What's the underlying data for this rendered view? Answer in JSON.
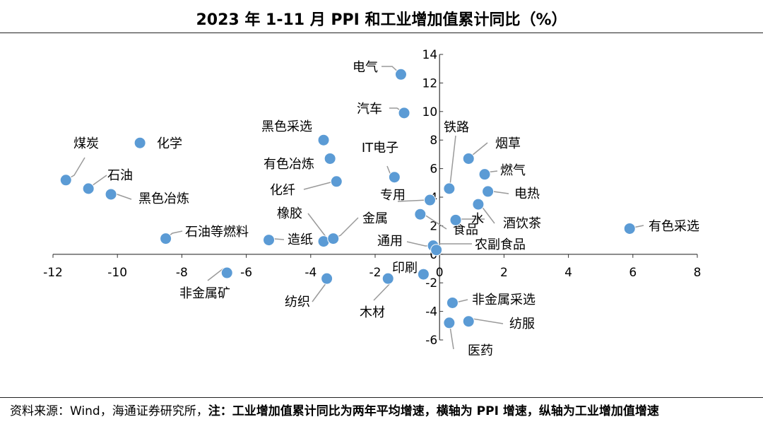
{
  "chart_data": {
    "type": "scatter",
    "title": "2023 年 1-11 月 PPI 和工业增加值累计同比（%）",
    "xlabel": "PPI 增速",
    "ylabel": "工业增加值增速",
    "xlim": [
      -12,
      8
    ],
    "ylim": [
      -6,
      14
    ],
    "x_ticks": [
      "-12",
      "-10",
      "-8",
      "-6",
      "-4",
      "-2",
      "0",
      "2",
      "4",
      "6",
      "8"
    ],
    "y_ticks": [
      "-6",
      "-4",
      "-2",
      "0",
      "2",
      "4",
      "6",
      "8",
      "10",
      "12",
      "14"
    ],
    "point_color": "#5b9bd5",
    "points": [
      {
        "label": "电气",
        "x": -1.2,
        "y": 12.6
      },
      {
        "label": "汽车",
        "x": -1.1,
        "y": 9.9
      },
      {
        "label": "黑色采选",
        "x": -3.6,
        "y": 8.0
      },
      {
        "label": "有色冶炼",
        "x": -3.4,
        "y": 6.7
      },
      {
        "label": "化纤",
        "x": -3.2,
        "y": 5.1
      },
      {
        "label": "IT电子",
        "x": -1.4,
        "y": 5.4
      },
      {
        "label": "煤炭",
        "x": -11.6,
        "y": 5.2
      },
      {
        "label": "化学",
        "x": -9.3,
        "y": 7.8
      },
      {
        "label": "石油",
        "x": -10.9,
        "y": 4.6
      },
      {
        "label": "黑色冶炼",
        "x": -10.2,
        "y": 4.2
      },
      {
        "label": "石油等燃料",
        "x": -8.5,
        "y": 1.1
      },
      {
        "label": "造纸",
        "x": -5.3,
        "y": 1.0
      },
      {
        "label": "橡胶",
        "x": -3.6,
        "y": 0.9
      },
      {
        "label": "金属",
        "x": -3.3,
        "y": 1.1
      },
      {
        "label": "专用",
        "x": -0.3,
        "y": 3.8
      },
      {
        "label": "食品",
        "x": -0.6,
        "y": 2.8
      },
      {
        "label": "通用",
        "x": -0.2,
        "y": 0.6
      },
      {
        "label": "农副食品",
        "x": -0.1,
        "y": 0.3
      },
      {
        "label": "铁路",
        "x": 0.3,
        "y": 4.6
      },
      {
        "label": "烟草",
        "x": 0.9,
        "y": 6.7
      },
      {
        "label": "燃气",
        "x": 1.4,
        "y": 5.6
      },
      {
        "label": "电热",
        "x": 1.5,
        "y": 4.4
      },
      {
        "label": "水",
        "x": 0.5,
        "y": 2.4
      },
      {
        "label": "酒饮茶",
        "x": 1.2,
        "y": 3.5
      },
      {
        "label": "有色采选",
        "x": 5.9,
        "y": 1.8
      },
      {
        "label": "非金属矿",
        "x": -6.6,
        "y": -1.3
      },
      {
        "label": "纺织",
        "x": -3.5,
        "y": -1.7
      },
      {
        "label": "木材",
        "x": -1.6,
        "y": -1.7
      },
      {
        "label": "印刷",
        "x": -0.5,
        "y": -1.4
      },
      {
        "label": "非金属采选",
        "x": 0.4,
        "y": -3.4
      },
      {
        "label": "纺服",
        "x": 0.9,
        "y": -4.7
      },
      {
        "label": "医药",
        "x": 0.3,
        "y": -4.8
      }
    ]
  },
  "footer": {
    "source": "资料来源：Wind，海通证券研究所，",
    "note": "注：工业增加值累计同比为两年平均增速，横轴为 PPI 增速，纵轴为工业增加值增速"
  }
}
